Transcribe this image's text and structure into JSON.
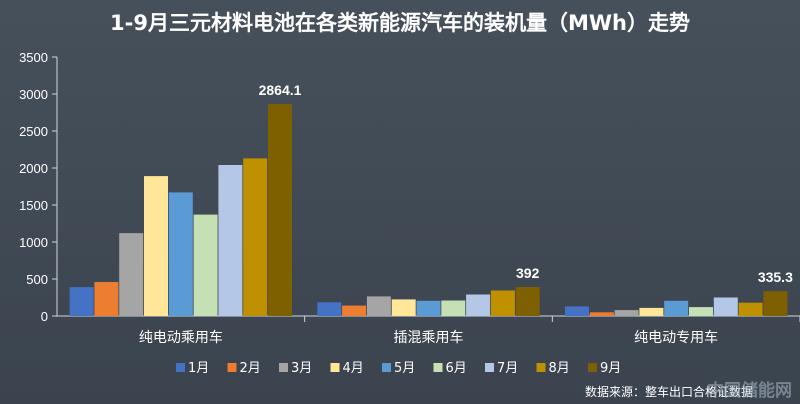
{
  "chart_data": {
    "type": "bar",
    "title": "1-9月三元材料电池在各类新能源汽车的装机量（MWh）走势",
    "categories": [
      "纯电动乘用车",
      "插混乘用车",
      "纯电动专用车"
    ],
    "series": [
      {
        "name": "1月",
        "color": "#4472c4",
        "values": [
          390,
          185,
          130
        ]
      },
      {
        "name": "2月",
        "color": "#ed7d31",
        "values": [
          460,
          140,
          50
        ]
      },
      {
        "name": "3月",
        "color": "#a5a5a5",
        "values": [
          1120,
          265,
          80
        ]
      },
      {
        "name": "4月",
        "color": "#ffe699",
        "values": [
          1890,
          225,
          110
        ]
      },
      {
        "name": "5月",
        "color": "#5b9bd5",
        "values": [
          1670,
          205,
          205
        ]
      },
      {
        "name": "6月",
        "color": "#c5e0b4",
        "values": [
          1370,
          210,
          120
        ]
      },
      {
        "name": "7月",
        "color": "#b4c7e7",
        "values": [
          2040,
          290,
          250
        ]
      },
      {
        "name": "8月",
        "color": "#bf9000",
        "values": [
          2130,
          345,
          180
        ]
      },
      {
        "name": "9月",
        "color": "#7f6000",
        "values": [
          2864.1,
          392,
          335.3
        ]
      }
    ],
    "data_labels": [
      {
        "series": "9月",
        "category": "纯电动乘用车",
        "text": "2864.1"
      },
      {
        "series": "9月",
        "category": "插混乘用车",
        "text": "392"
      },
      {
        "series": "9月",
        "category": "纯电动专用车",
        "text": "335.3"
      }
    ],
    "ylim": [
      0,
      3500
    ],
    "yticks": [
      0,
      500,
      1000,
      1500,
      2000,
      2500,
      3000,
      3500
    ],
    "grid": false,
    "legend_position": "bottom"
  },
  "source_note": "数据来源：整车出口合格证数据",
  "watermark": "中国储能网"
}
